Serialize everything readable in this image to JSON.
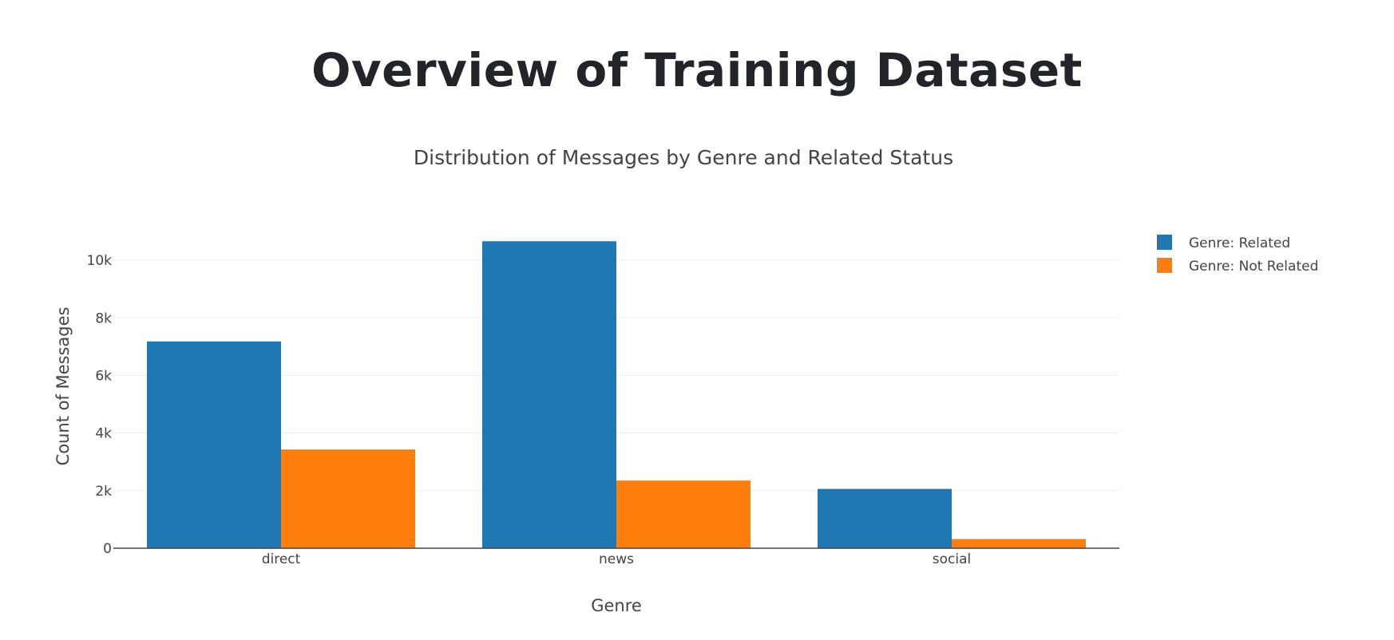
{
  "page": {
    "heading": "Overview of Training Dataset"
  },
  "chart_data": {
    "type": "bar",
    "barmode": "group",
    "title": "Distribution of Messages by Genre and Related Status",
    "xlabel": "Genre",
    "ylabel": "Count of Messages",
    "categories": [
      "direct",
      "news",
      "social"
    ],
    "series": [
      {
        "name": "Genre: Related",
        "color": "#1f77b4",
        "values": [
          7180,
          10660,
          2060
        ]
      },
      {
        "name": "Genre: Not Related",
        "color": "#ff7f0e",
        "values": [
          3430,
          2350,
          320
        ]
      }
    ],
    "ylim": [
      0,
      11000
    ],
    "yticks": [
      0,
      2000,
      4000,
      6000,
      8000,
      10000
    ],
    "ytick_labels": [
      "0",
      "2k",
      "4k",
      "6k",
      "8k",
      "10k"
    ],
    "grid": true,
    "legend": "top-right"
  }
}
